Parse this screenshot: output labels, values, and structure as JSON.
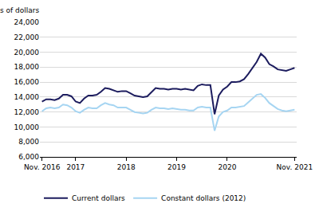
{
  "chart_data": {
    "type": "line",
    "ylabel": "millions of dollars",
    "categories": [
      "Nov. 2016",
      null,
      null,
      null,
      null,
      null,
      null,
      null,
      "2017",
      null,
      null,
      null,
      null,
      null,
      null,
      null,
      null,
      null,
      null,
      null,
      "2018",
      null,
      null,
      null,
      null,
      null,
      null,
      null,
      null,
      null,
      null,
      null,
      "2019",
      null,
      null,
      null,
      null,
      null,
      null,
      null,
      null,
      null,
      null,
      null,
      "2020",
      null,
      null,
      null,
      null,
      null,
      null,
      null,
      null,
      null,
      null,
      null,
      null,
      null,
      null,
      null,
      "Nov. 2021"
    ],
    "series": [
      {
        "name": "Current dollars",
        "color": "#1c1c5e",
        "values": [
          13400,
          13700,
          13700,
          13600,
          13800,
          14300,
          14300,
          14100,
          13400,
          13200,
          13800,
          14200,
          14200,
          14300,
          14700,
          15200,
          15100,
          14900,
          14700,
          14800,
          14800,
          14500,
          14200,
          14100,
          14000,
          14100,
          14600,
          15200,
          15100,
          15100,
          15000,
          15100,
          15100,
          15000,
          15100,
          15000,
          14900,
          15500,
          15700,
          15600,
          15600,
          11700,
          14200,
          15000,
          15400,
          16000,
          16000,
          16100,
          16400,
          17100,
          17900,
          18700,
          19800,
          19300,
          18400,
          18100,
          17700,
          17600,
          17500,
          17700,
          17900
        ]
      },
      {
        "name": "Constant dollars (2012)",
        "color": "#a6d5f2",
        "values": [
          12100,
          12500,
          12600,
          12500,
          12600,
          13000,
          12900,
          12600,
          12100,
          11900,
          12300,
          12600,
          12500,
          12500,
          12900,
          13200,
          13000,
          12900,
          12600,
          12600,
          12600,
          12300,
          12000,
          11900,
          11800,
          11900,
          12300,
          12600,
          12500,
          12500,
          12400,
          12500,
          12400,
          12300,
          12300,
          12200,
          12200,
          12600,
          12700,
          12600,
          12600,
          9500,
          11400,
          12000,
          12200,
          12600,
          12600,
          12700,
          12800,
          13300,
          13800,
          14300,
          14400,
          13900,
          13200,
          12800,
          12400,
          12200,
          12100,
          12200,
          12300
        ]
      }
    ],
    "ylim": [
      6000,
      24000
    ],
    "yticks": [
      {
        "value": 6000,
        "label": "6,000"
      },
      {
        "value": 8000,
        "label": "8,000"
      },
      {
        "value": 10000,
        "label": "10,000"
      },
      {
        "value": 12000,
        "label": "12,000"
      },
      {
        "value": 14000,
        "label": "14,000"
      },
      {
        "value": 16000,
        "label": "16,000"
      },
      {
        "value": 18000,
        "label": "18,000"
      },
      {
        "value": 20000,
        "label": "20,000"
      },
      {
        "value": 22000,
        "label": "22,000"
      },
      {
        "value": 24000,
        "label": "24,000"
      }
    ],
    "grid": true,
    "legend": "bottom"
  }
}
